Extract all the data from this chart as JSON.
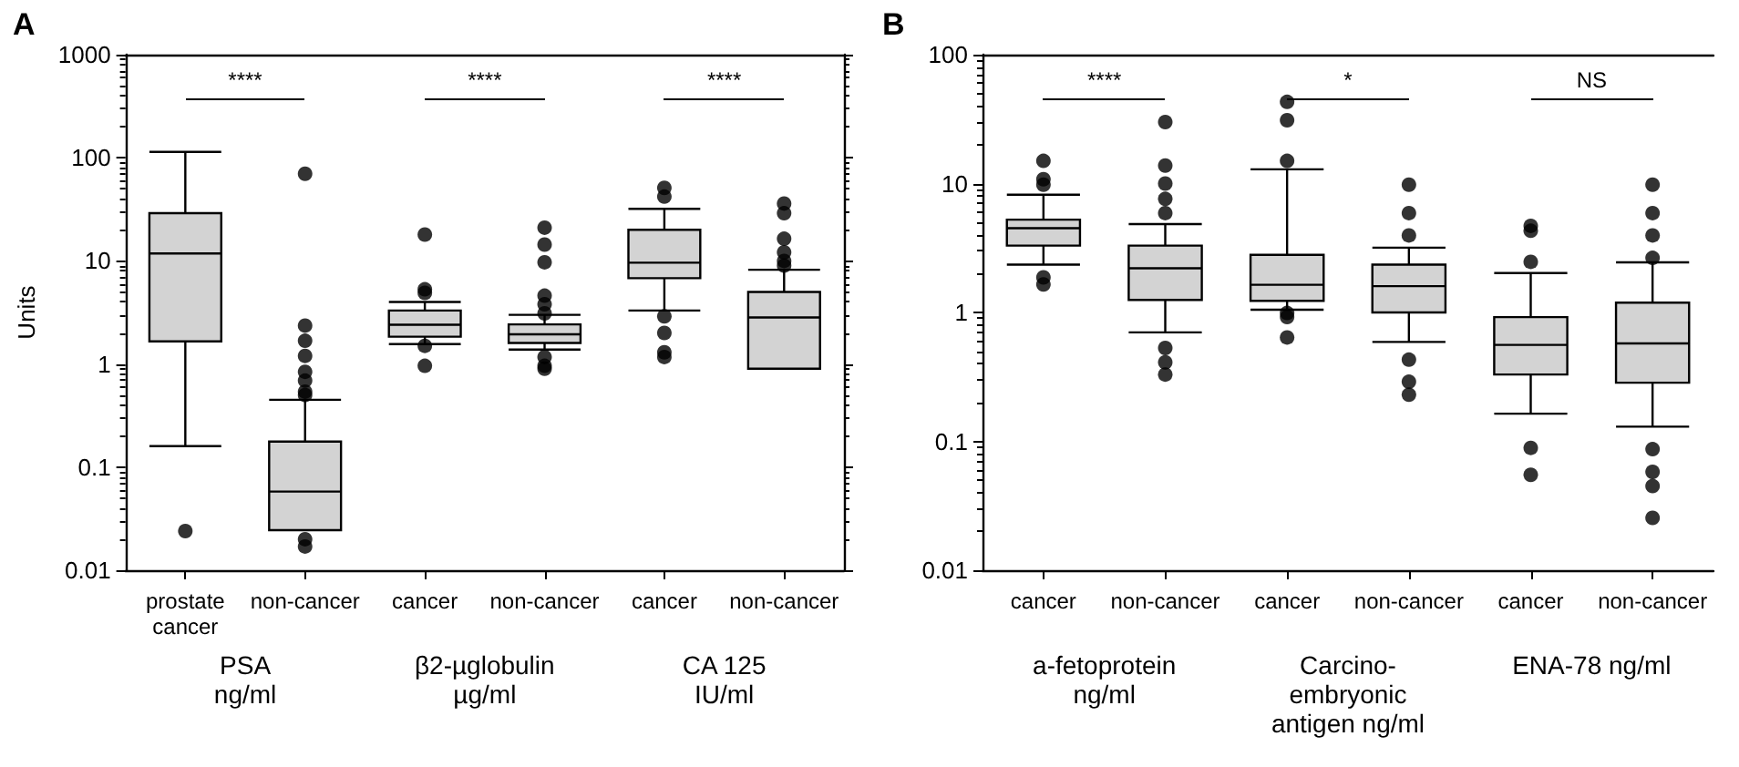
{
  "chart_data": [
    {
      "type": "box",
      "title": "A",
      "ylabel": "Units",
      "log": true,
      "color": "#d3d3d3",
      "categories": [
        "prostate\ncancer",
        "non-cancer",
        "cancer",
        "non-cancer",
        "cancer",
        "non-cancer"
      ],
      "boxes": [
        {
          "low": 0.16,
          "q1": 1.66,
          "median": 11.8,
          "q3": 29,
          "high": 114,
          "outliers": [
            0.024
          ]
        },
        {
          "low": 0.0245,
          "q1": 0.0245,
          "median": 0.058,
          "q3": 0.177,
          "high": 0.45,
          "outliers": [
            70,
            2.36,
            1.68,
            1.2,
            0.84,
            0.69,
            0.54,
            0.5,
            0.02,
            0.017
          ]
        },
        {
          "low": 1.56,
          "q1": 1.84,
          "median": 2.4,
          "q3": 3.3,
          "high": 4.0,
          "outliers": [
            18,
            5.3,
            4.9,
            1.5,
            0.96
          ]
        },
        {
          "low": 1.38,
          "q1": 1.6,
          "median": 1.94,
          "q3": 2.42,
          "high": 3.0,
          "outliers": [
            21,
            14.4,
            9.7,
            4.6,
            3.8,
            3.1,
            1.17,
            0.96,
            0.9
          ]
        },
        {
          "low": 3.3,
          "q1": 6.8,
          "median": 9.6,
          "q3": 20,
          "high": 32,
          "outliers": [
            51,
            42,
            2.9,
            2.0,
            1.3,
            1.17
          ]
        },
        {
          "low": 0.9,
          "q1": 0.9,
          "median": 2.83,
          "q3": 5.0,
          "high": 8.2,
          "outliers": [
            36,
            29,
            16.4,
            12.1,
            10,
            9
          ]
        }
      ],
      "ylim": [
        0.01,
        1000
      ],
      "yticks": [
        0.01,
        0.1,
        1,
        10,
        100,
        1000
      ],
      "annotations": [
        "****",
        "****",
        "****",
        "PSA\nng/ml",
        "β2-µglobulin\nµg/ml",
        "CA 125\nIU/ml"
      ]
    },
    {
      "type": "box",
      "title": "B",
      "log": true,
      "color": "#d3d3d3",
      "categories": [
        "cancer",
        "non-cancer",
        "cancer",
        "non-cancer",
        "cancer",
        "non-cancer"
      ],
      "boxes": [
        {
          "low": 2.35,
          "q1": 3.3,
          "median": 4.5,
          "q3": 5.25,
          "high": 8.2,
          "outliers": [
            15,
            10.8,
            9.8,
            1.87,
            1.65
          ]
        },
        {
          "low": 0.7,
          "q1": 1.25,
          "median": 2.2,
          "q3": 3.3,
          "high": 4.85,
          "outliers": [
            30,
            13.8,
            10,
            7.6,
            5.9,
            0.53,
            0.41,
            0.33
          ]
        },
        {
          "low": 1.05,
          "q1": 1.23,
          "median": 1.64,
          "q3": 2.8,
          "high": 12.9,
          "outliers": [
            43,
            31,
            15,
            0.99,
            0.92,
            0.64
          ]
        },
        {
          "low": 0.59,
          "q1": 1.0,
          "median": 1.6,
          "q3": 2.35,
          "high": 3.18,
          "outliers": [
            9.8,
            5.9,
            3.96,
            0.43,
            0.29,
            0.23
          ]
        },
        {
          "low": 0.164,
          "q1": 0.33,
          "median": 0.56,
          "q3": 0.92,
          "high": 2.02,
          "outliers": [
            4.7,
            4.3,
            2.47,
            0.089,
            0.055
          ]
        },
        {
          "low": 0.13,
          "q1": 0.285,
          "median": 0.575,
          "q3": 1.19,
          "high": 2.45,
          "outliers": [
            9.8,
            5.9,
            3.96,
            2.65,
            0.087,
            0.058,
            0.045,
            0.0255
          ]
        }
      ],
      "ylim": [
        0.01,
        100
      ],
      "yticks": [
        0.01,
        0.1,
        1,
        10,
        100
      ],
      "annotations": [
        "****",
        "*",
        "NS",
        "a-fetoprotein\nng/ml",
        "Carcino-\nembryonic\nantigen ng/ml",
        "ENA-78 ng/ml"
      ]
    }
  ]
}
